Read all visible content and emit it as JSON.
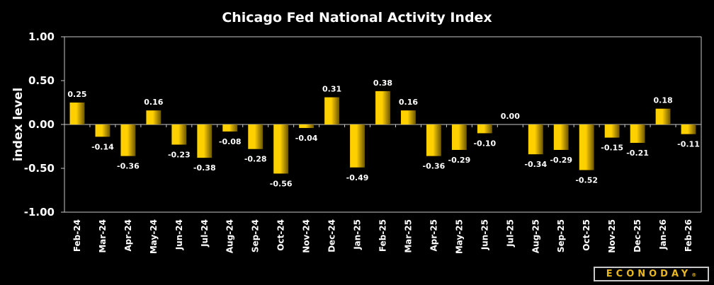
{
  "chart_data": {
    "type": "bar",
    "title": "Chicago Fed National Activity Index",
    "xlabel": "",
    "ylabel": "index level",
    "ylim": [
      -1.0,
      1.0
    ],
    "yticks": [
      "1.00",
      "0.50",
      "0.00",
      "-0.50",
      "-1.00"
    ],
    "ytick_values": [
      1.0,
      0.5,
      0.0,
      -0.5,
      -1.0
    ],
    "grid": false,
    "legend": "none",
    "categories": [
      "Feb-24",
      "Mar-24",
      "Apr-24",
      "May-24",
      "Jun-24",
      "Jul-24",
      "Aug-24",
      "Sep-24",
      "Oct-24",
      "Nov-24",
      "Dec-24",
      "Jan-25",
      "Feb-25",
      "Mar-25",
      "Apr-25",
      "May-25",
      "Jun-25",
      "Jul-25",
      "Aug-25",
      "Sep-25",
      "Oct-25",
      "Nov-25",
      "Dec-25",
      "Jan-26",
      "Feb-26"
    ],
    "values": [
      0.25,
      -0.14,
      -0.36,
      0.16,
      -0.23,
      -0.38,
      -0.08,
      -0.28,
      -0.56,
      -0.04,
      0.31,
      -0.49,
      0.38,
      0.16,
      -0.36,
      -0.29,
      -0.1,
      0.0,
      -0.34,
      -0.29,
      -0.52,
      -0.15,
      -0.21,
      0.18,
      -0.11
    ],
    "data_labels": [
      "0.25",
      "-0.14",
      "-0.36",
      "0.16",
      "-0.23",
      "-0.38",
      "-0.08",
      "-0.28",
      "-0.56",
      "-0.04",
      "0.31",
      "-0.49",
      "0.38",
      "0.16",
      "-0.36",
      "-0.29",
      "-0.10",
      "0.00",
      "-0.34",
      "-0.29",
      "-0.52",
      "-0.15",
      "-0.21",
      "0.18",
      "-0.11"
    ],
    "bar_color_light": "#ffd000",
    "bar_color_dark": "#6b5500"
  },
  "branding": {
    "logo_text": "ECONODAY",
    "logo_mark": "®"
  }
}
